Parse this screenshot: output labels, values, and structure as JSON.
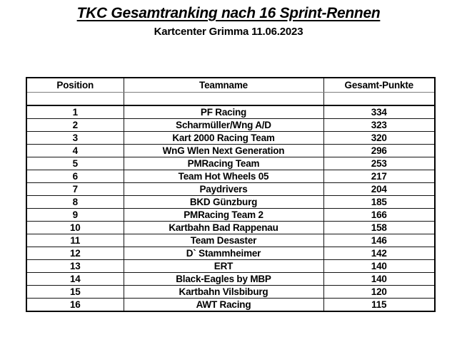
{
  "title": "TKC Gesamtranking nach 16 Sprint-Rennen",
  "subtitle": "Kartcenter Grimma 11.06.2023",
  "table": {
    "columns": [
      "Position",
      "Teamname",
      "Gesamt-Punkte"
    ],
    "rows": [
      [
        "1",
        "PF Racing",
        "334"
      ],
      [
        "2",
        "Scharmüller/Wng A/D",
        "323"
      ],
      [
        "3",
        "Kart 2000 Racing Team",
        "320"
      ],
      [
        "4",
        "WnG Wlen Next Generation",
        "296"
      ],
      [
        "5",
        "PMRacing Team",
        "253"
      ],
      [
        "6",
        "Team Hot Wheels 05",
        "217"
      ],
      [
        "7",
        "Paydrivers",
        "204"
      ],
      [
        "8",
        "BKD Günzburg",
        "185"
      ],
      [
        "9",
        "PMRacing Team 2",
        "166"
      ],
      [
        "10",
        "Kartbahn Bad Rappenau",
        "158"
      ],
      [
        "11",
        "Team Desaster",
        "146"
      ],
      [
        "12",
        "D` Stammheimer",
        "142"
      ],
      [
        "13",
        "ERT",
        "140"
      ],
      [
        "14",
        "Black-Eagles by MBP",
        "140"
      ],
      [
        "15",
        "Kartbahn Vilsbiburg",
        "120"
      ],
      [
        "16",
        "AWT Racing",
        "115"
      ]
    ]
  }
}
